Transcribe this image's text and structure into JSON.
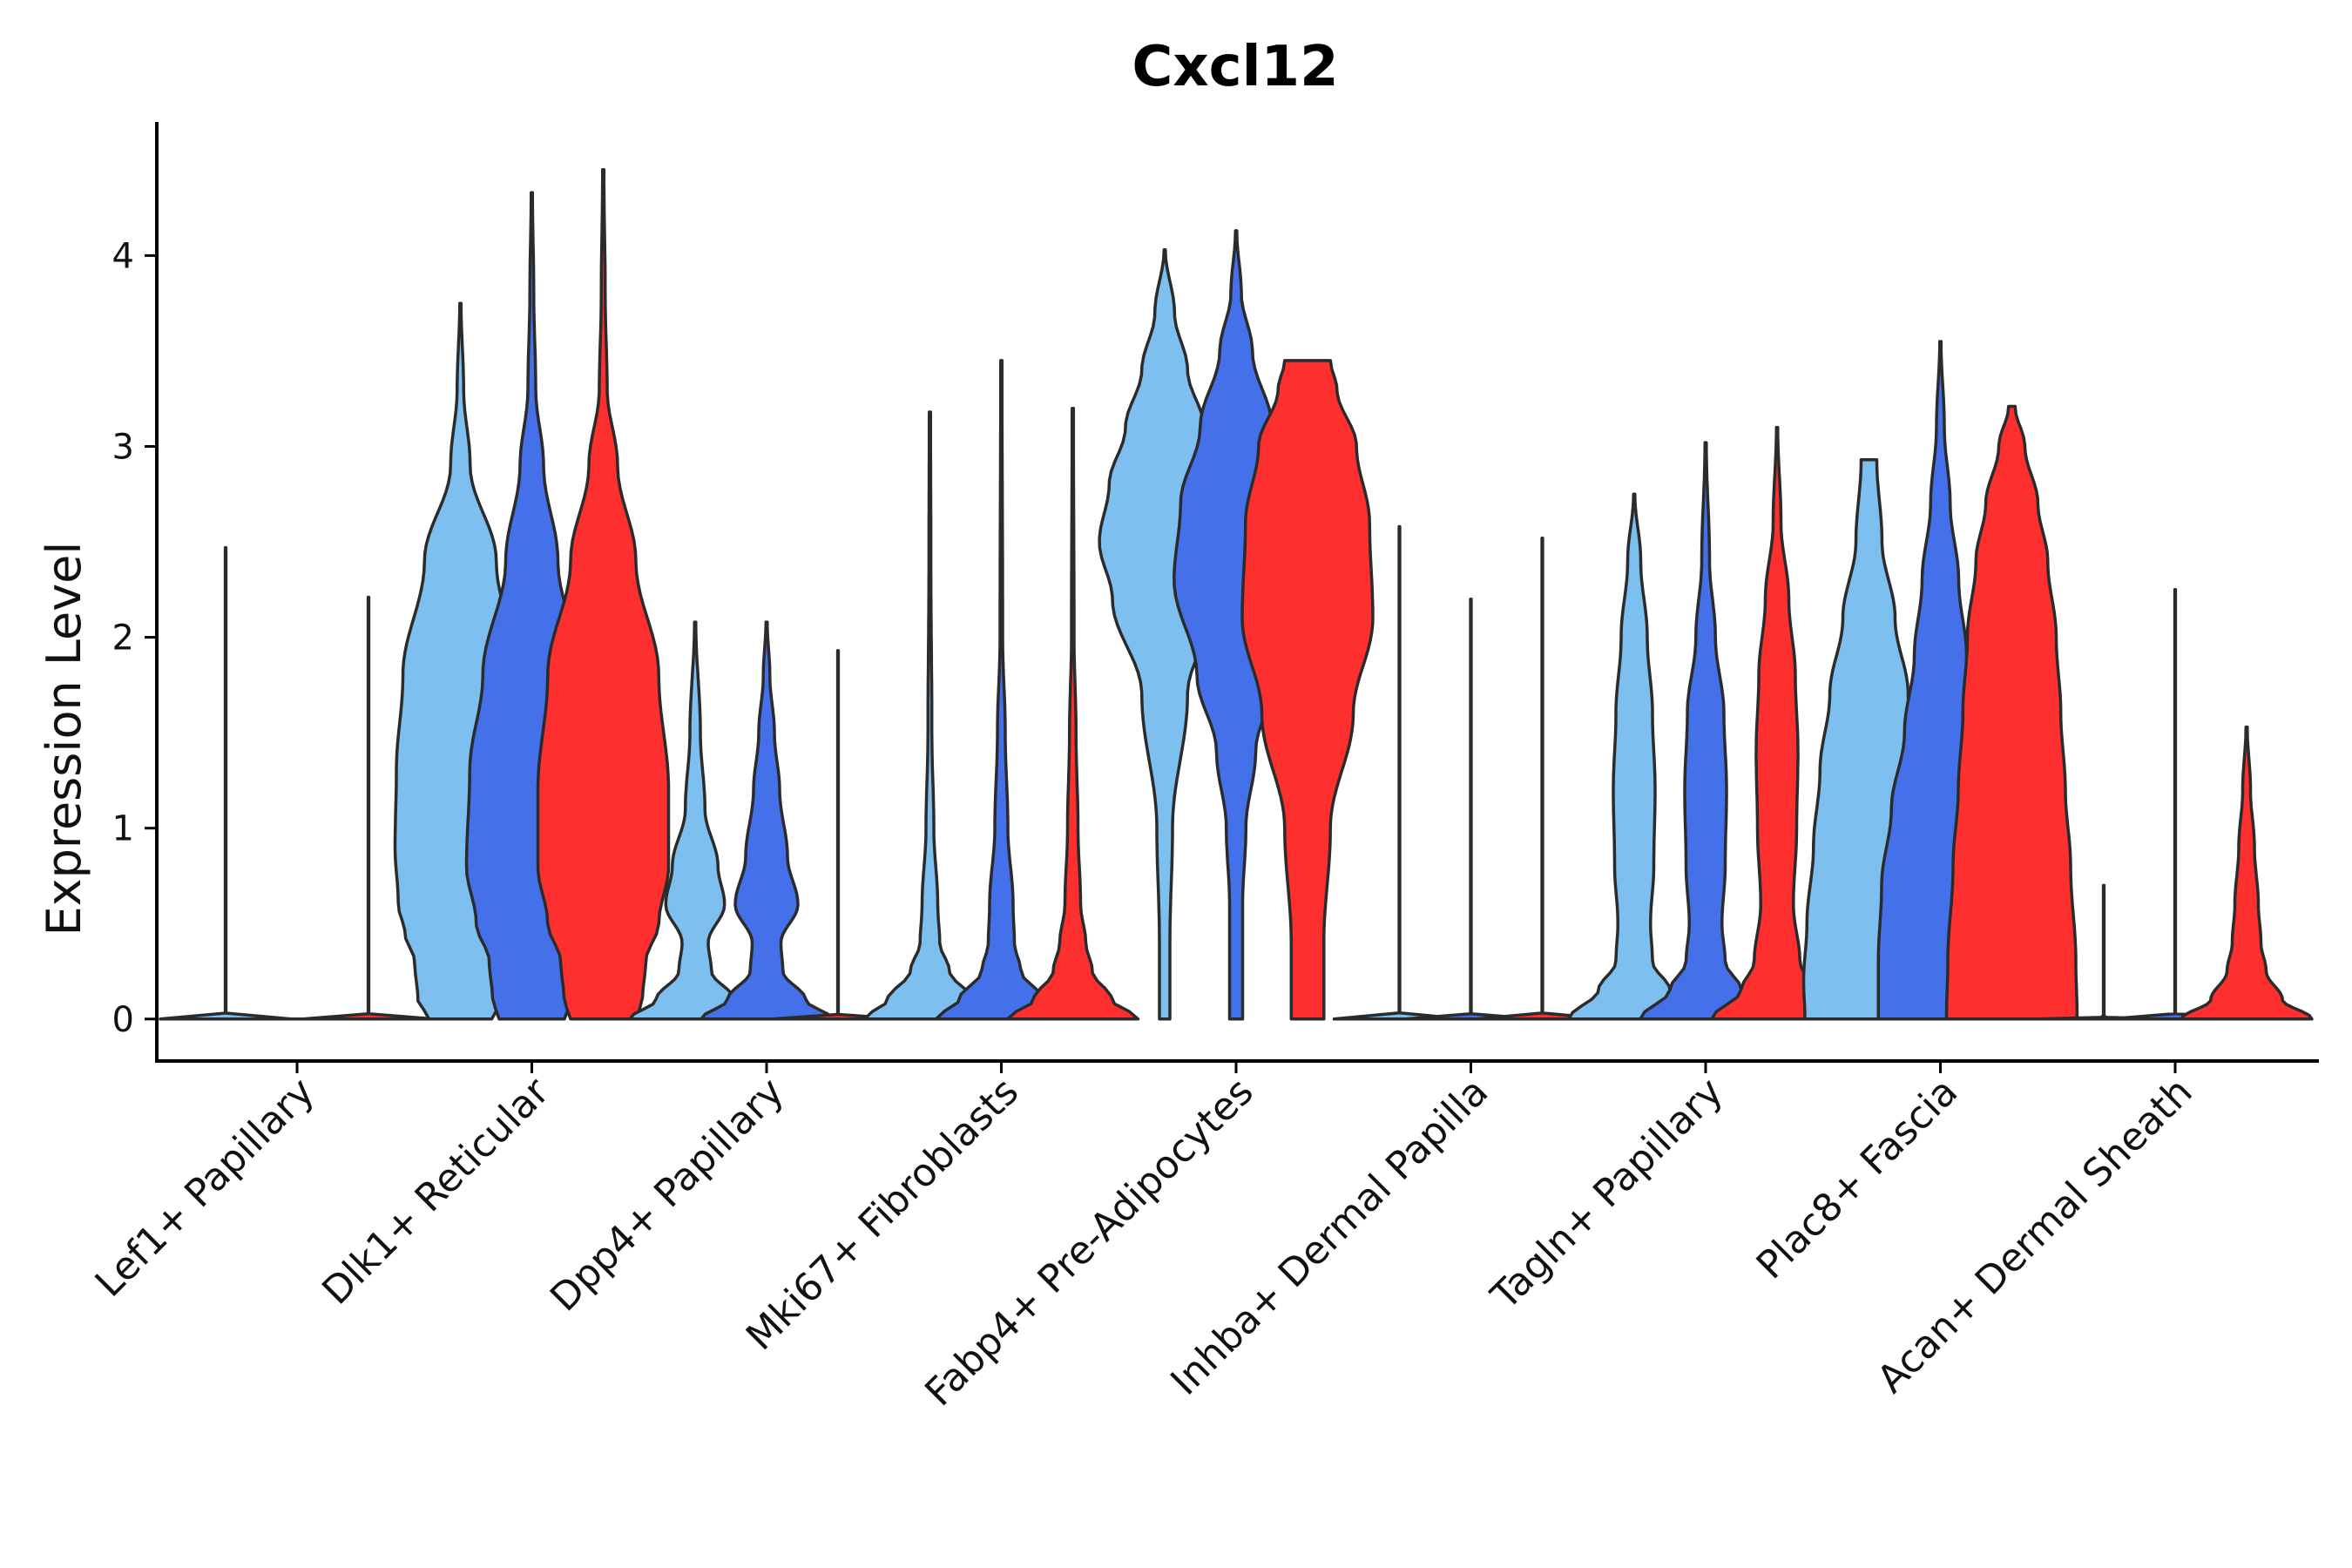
{
  "chart_data": {
    "type": "violin",
    "title": "Cxcl12",
    "xlabel": "",
    "ylabel": "Expression Level",
    "ylim": [
      -0.22,
      4.7
    ],
    "yticks": [
      0,
      1,
      2,
      3,
      4
    ],
    "grid": false,
    "legend": "none",
    "series_colors": [
      "#7dbfee",
      "#4470ea",
      "#fe2f2f"
    ],
    "categories": [
      "Lef1+ Papillary",
      "Dlk1+ Reticular",
      "Dpp4+ Papillary",
      "Mki67+ Fibroblasts",
      "Fabp4+ Pre-Adipocytes",
      "Inhba+ Dermal Papilla",
      "Tagln+ Papillary",
      "Plac8+ Fascia",
      "Acan+ Dermal Sheath"
    ],
    "groups": [
      {
        "category": "Lef1+ Papillary",
        "violins": [
          {
            "series": 0,
            "max": 2.47,
            "profile": [
              [
                0,
                1
              ],
              [
                0.01,
                0.005
              ],
              [
                2.47,
                0.005
              ]
            ]
          },
          {
            "series": 1,
            "max": 0.0,
            "profile": [
              [
                0,
                0.6
              ],
              [
                0.01,
                0.005
              ]
            ]
          },
          {
            "series": 2,
            "max": 2.21,
            "profile": [
              [
                0,
                1
              ],
              [
                0.01,
                0.005
              ],
              [
                2.21,
                0.005
              ]
            ]
          }
        ]
      },
      {
        "category": "Dlk1+ Reticular",
        "violins": [
          {
            "series": 0,
            "max": 3.75,
            "profile": [
              [
                0,
                0.48
              ],
              [
                0.1,
                0.65
              ],
              [
                0.3,
                0.7
              ],
              [
                0.45,
                0.85
              ],
              [
                0.6,
                0.95
              ],
              [
                0.9,
                1.0
              ],
              [
                1.3,
                0.98
              ],
              [
                1.8,
                0.88
              ],
              [
                2.4,
                0.55
              ],
              [
                2.9,
                0.15
              ],
              [
                3.3,
                0.05
              ],
              [
                3.75,
                0.01
              ]
            ]
          },
          {
            "series": 1,
            "max": 4.33,
            "profile": [
              [
                0,
                0.5
              ],
              [
                0.1,
                0.6
              ],
              [
                0.3,
                0.65
              ],
              [
                0.5,
                0.85
              ],
              [
                0.8,
                1.0
              ],
              [
                1.3,
                0.95
              ],
              [
                1.8,
                0.75
              ],
              [
                2.4,
                0.4
              ],
              [
                2.9,
                0.18
              ],
              [
                3.3,
                0.06
              ],
              [
                3.8,
                0.03
              ],
              [
                4.33,
                0.01
              ]
            ]
          },
          {
            "series": 2,
            "max": 4.45,
            "profile": [
              [
                0,
                0.5
              ],
              [
                0.1,
                0.6
              ],
              [
                0.3,
                0.65
              ],
              [
                0.5,
                0.85
              ],
              [
                0.8,
                1.0
              ],
              [
                1.2,
                1.0
              ],
              [
                1.8,
                0.85
              ],
              [
                2.4,
                0.5
              ],
              [
                2.9,
                0.22
              ],
              [
                3.3,
                0.06
              ],
              [
                3.8,
                0.03
              ],
              [
                4.45,
                0.01
              ]
            ]
          }
        ]
      },
      {
        "category": "Dpp4+ Papillary",
        "violins": [
          {
            "series": 0,
            "max": 2.08,
            "profile": [
              [
                0,
                1.0
              ],
              [
                0.1,
                0.6
              ],
              [
                0.25,
                0.25
              ],
              [
                0.4,
                0.2
              ],
              [
                0.6,
                0.45
              ],
              [
                0.8,
                0.35
              ],
              [
                1.1,
                0.15
              ],
              [
                1.5,
                0.08
              ],
              [
                2.08,
                0.01
              ]
            ]
          },
          {
            "series": 1,
            "max": 2.08,
            "profile": [
              [
                0,
                1.0
              ],
              [
                0.1,
                0.6
              ],
              [
                0.25,
                0.25
              ],
              [
                0.4,
                0.22
              ],
              [
                0.6,
                0.48
              ],
              [
                0.85,
                0.32
              ],
              [
                1.2,
                0.2
              ],
              [
                1.5,
                0.12
              ],
              [
                1.8,
                0.05
              ],
              [
                2.08,
                0.01
              ]
            ]
          },
          {
            "series": 2,
            "max": 1.93,
            "profile": [
              [
                0,
                1
              ],
              [
                0.01,
                0.005
              ],
              [
                1.93,
                0.005
              ]
            ]
          }
        ]
      },
      {
        "category": "Mki67+ Fibroblasts",
        "violins": [
          {
            "series": 0,
            "max": 3.18,
            "profile": [
              [
                0,
                1.0
              ],
              [
                0.1,
                0.65
              ],
              [
                0.25,
                0.3
              ],
              [
                0.4,
                0.15
              ],
              [
                0.6,
                0.12
              ],
              [
                1.0,
                0.06
              ],
              [
                1.5,
                0.03
              ],
              [
                2.4,
                0.015
              ],
              [
                3.18,
                0.01
              ]
            ]
          },
          {
            "series": 1,
            "max": 3.45,
            "profile": [
              [
                0,
                1.0
              ],
              [
                0.1,
                0.65
              ],
              [
                0.25,
                0.3
              ],
              [
                0.4,
                0.2
              ],
              [
                0.6,
                0.18
              ],
              [
                1.0,
                0.1
              ],
              [
                1.5,
                0.06
              ],
              [
                2.0,
                0.02
              ],
              [
                3.45,
                0.01
              ]
            ]
          },
          {
            "series": 2,
            "max": 3.2,
            "profile": [
              [
                0,
                1.0
              ],
              [
                0.1,
                0.6
              ],
              [
                0.25,
                0.3
              ],
              [
                0.4,
                0.2
              ],
              [
                0.6,
                0.12
              ],
              [
                1.0,
                0.08
              ],
              [
                1.5,
                0.05
              ],
              [
                2.0,
                0.02
              ],
              [
                3.2,
                0.01
              ]
            ]
          }
        ]
      },
      {
        "category": "Fabp4+ Pre-Adipocytes",
        "violins": [
          {
            "series": 0,
            "max": 4.03,
            "profile": [
              [
                0,
                0.08
              ],
              [
                0.4,
                0.08
              ],
              [
                1.0,
                0.12
              ],
              [
                1.7,
                0.35
              ],
              [
                2.2,
                0.8
              ],
              [
                2.5,
                1.0
              ],
              [
                2.8,
                0.85
              ],
              [
                3.1,
                0.6
              ],
              [
                3.4,
                0.35
              ],
              [
                3.7,
                0.15
              ],
              [
                4.03,
                0.01
              ]
            ]
          },
          {
            "series": 1,
            "max": 4.13,
            "profile": [
              [
                0,
                0.1
              ],
              [
                0.6,
                0.1
              ],
              [
                1.0,
                0.15
              ],
              [
                1.4,
                0.3
              ],
              [
                1.8,
                0.6
              ],
              [
                2.3,
                0.95
              ],
              [
                2.7,
                0.85
              ],
              [
                3.1,
                0.55
              ],
              [
                3.5,
                0.25
              ],
              [
                3.8,
                0.08
              ],
              [
                4.13,
                0.01
              ]
            ]
          },
          {
            "series": 2,
            "max": 3.45,
            "profile": [
              [
                0,
                0.25
              ],
              [
                0.4,
                0.25
              ],
              [
                1.0,
                0.35
              ],
              [
                1.6,
                0.7
              ],
              [
                2.1,
                1.0
              ],
              [
                2.6,
                0.95
              ],
              [
                3.0,
                0.75
              ],
              [
                3.3,
                0.45
              ],
              [
                3.45,
                0.35
              ]
            ]
          }
        ]
      },
      {
        "category": "Inhba+ Dermal Papilla",
        "violins": [
          {
            "series": 0,
            "max": 2.58,
            "profile": [
              [
                0,
                1
              ],
              [
                0.01,
                0.005
              ],
              [
                2.58,
                0.005
              ]
            ]
          },
          {
            "series": 1,
            "max": 2.2,
            "profile": [
              [
                0,
                1
              ],
              [
                0.01,
                0.005
              ],
              [
                2.2,
                0.005
              ]
            ]
          },
          {
            "series": 2,
            "max": 2.52,
            "profile": [
              [
                0,
                1
              ],
              [
                0.01,
                0.005
              ],
              [
                2.52,
                0.005
              ]
            ]
          }
        ]
      },
      {
        "category": "Tagln+ Papillary",
        "violins": [
          {
            "series": 0,
            "max": 2.75,
            "profile": [
              [
                0,
                1.0
              ],
              [
                0.15,
                0.55
              ],
              [
                0.3,
                0.28
              ],
              [
                0.5,
                0.25
              ],
              [
                0.8,
                0.3
              ],
              [
                1.2,
                0.32
              ],
              [
                1.6,
                0.28
              ],
              [
                2.0,
                0.2
              ],
              [
                2.4,
                0.1
              ],
              [
                2.75,
                0.01
              ]
            ]
          },
          {
            "series": 1,
            "max": 3.02,
            "profile": [
              [
                0,
                1.0
              ],
              [
                0.15,
                0.55
              ],
              [
                0.3,
                0.3
              ],
              [
                0.5,
                0.25
              ],
              [
                0.8,
                0.3
              ],
              [
                1.2,
                0.32
              ],
              [
                1.6,
                0.28
              ],
              [
                2.0,
                0.15
              ],
              [
                2.4,
                0.06
              ],
              [
                3.02,
                0.01
              ]
            ]
          },
          {
            "series": 2,
            "max": 3.1,
            "profile": [
              [
                0,
                1.0
              ],
              [
                0.15,
                0.55
              ],
              [
                0.3,
                0.35
              ],
              [
                0.6,
                0.25
              ],
              [
                1.0,
                0.3
              ],
              [
                1.4,
                0.32
              ],
              [
                1.8,
                0.28
              ],
              [
                2.2,
                0.18
              ],
              [
                2.6,
                0.06
              ],
              [
                3.1,
                0.01
              ]
            ]
          }
        ]
      },
      {
        "category": "Plac8+ Fascia",
        "violins": [
          {
            "series": 0,
            "max": 2.93,
            "profile": [
              [
                0,
                0.98
              ],
              [
                0.2,
                1.0
              ],
              [
                0.5,
                0.95
              ],
              [
                0.9,
                0.85
              ],
              [
                1.3,
                0.75
              ],
              [
                1.7,
                0.6
              ],
              [
                2.1,
                0.4
              ],
              [
                2.5,
                0.2
              ],
              [
                2.93,
                0.12
              ]
            ]
          },
          {
            "series": 1,
            "max": 3.55,
            "profile": [
              [
                0,
                0.95
              ],
              [
                0.3,
                0.95
              ],
              [
                0.7,
                0.9
              ],
              [
                1.1,
                0.75
              ],
              [
                1.5,
                0.55
              ],
              [
                1.9,
                0.4
              ],
              [
                2.3,
                0.28
              ],
              [
                2.7,
                0.15
              ],
              [
                3.1,
                0.06
              ],
              [
                3.55,
                0.01
              ]
            ]
          },
          {
            "series": 2,
            "max": 3.21,
            "profile": [
              [
                0,
                1.0
              ],
              [
                0.3,
                0.98
              ],
              [
                0.8,
                0.9
              ],
              [
                1.2,
                0.82
              ],
              [
                1.6,
                0.75
              ],
              [
                2.0,
                0.68
              ],
              [
                2.4,
                0.55
              ],
              [
                2.7,
                0.4
              ],
              [
                3.0,
                0.2
              ],
              [
                3.21,
                0.05
              ]
            ]
          }
        ]
      },
      {
        "category": "Acan+ Dermal Sheath",
        "violins": [
          {
            "series": 0,
            "max": 0.7,
            "profile": [
              [
                0,
                1
              ],
              [
                0.01,
                0.005
              ],
              [
                0.7,
                0.005
              ]
            ]
          },
          {
            "series": 1,
            "max": 2.25,
            "profile": [
              [
                0,
                1
              ],
              [
                0.01,
                0.005
              ],
              [
                2.25,
                0.005
              ]
            ]
          },
          {
            "series": 2,
            "max": 1.53,
            "profile": [
              [
                0,
                1.0
              ],
              [
                0.1,
                0.55
              ],
              [
                0.25,
                0.3
              ],
              [
                0.4,
                0.22
              ],
              [
                0.6,
                0.18
              ],
              [
                0.9,
                0.12
              ],
              [
                1.2,
                0.06
              ],
              [
                1.53,
                0.01
              ]
            ]
          }
        ]
      }
    ]
  }
}
